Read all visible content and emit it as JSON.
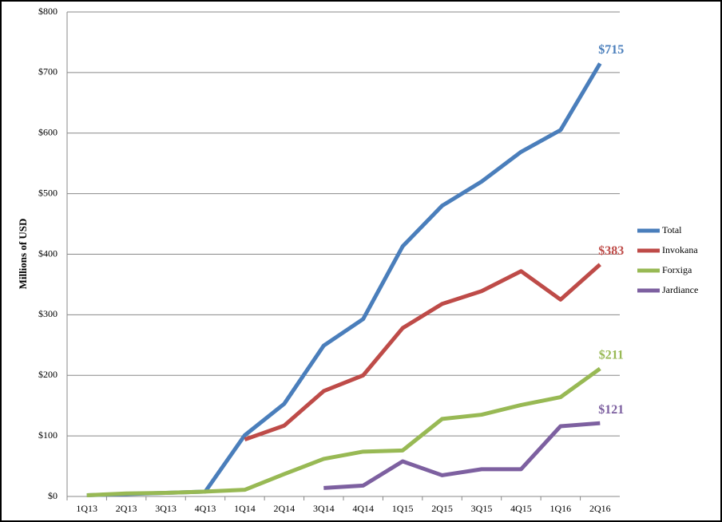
{
  "chart_data": {
    "type": "line",
    "y_label": "Millions of USD",
    "categories": [
      "1Q13",
      "2Q13",
      "3Q13",
      "4Q13",
      "1Q14",
      "2Q14",
      "3Q14",
      "4Q14",
      "1Q15",
      "2Q15",
      "3Q15",
      "4Q15",
      "1Q16",
      "2Q16"
    ],
    "series": [
      {
        "name": "Total",
        "color": "#4a7ebb",
        "values": [
          2,
          4,
          6,
          8,
          101,
          153,
          249,
          293,
          413,
          480,
          520,
          569,
          605,
          715
        ],
        "value_labels": [
          null,
          null,
          null,
          null,
          null,
          null,
          null,
          null,
          null,
          null,
          null,
          null,
          null,
          "$715"
        ]
      },
      {
        "name": "Invokana",
        "color": "#be4b48",
        "values": [
          null,
          null,
          null,
          null,
          94,
          117,
          174,
          200,
          278,
          318,
          339,
          372,
          325,
          383
        ],
        "value_labels": [
          null,
          null,
          null,
          null,
          null,
          null,
          null,
          null,
          null,
          null,
          null,
          null,
          null,
          "$383"
        ]
      },
      {
        "name": "Forxiga",
        "color": "#98b954",
        "values": [
          2,
          5,
          6,
          8,
          11,
          37,
          62,
          74,
          76,
          128,
          135,
          151,
          164,
          211
        ],
        "value_labels": [
          null,
          null,
          null,
          null,
          null,
          null,
          null,
          null,
          null,
          null,
          null,
          null,
          null,
          "$211"
        ]
      },
      {
        "name": "Jardiance",
        "color": "#7d60a0",
        "values": [
          null,
          null,
          null,
          null,
          null,
          null,
          14,
          18,
          58,
          35,
          45,
          45,
          116,
          121
        ],
        "value_labels": [
          null,
          null,
          null,
          null,
          null,
          null,
          null,
          null,
          null,
          null,
          null,
          null,
          null,
          "$121"
        ]
      }
    ],
    "ylim": [
      0,
      800
    ],
    "yticks": [
      {
        "value": 0,
        "label": "$0"
      },
      {
        "value": 100,
        "label": "$100"
      },
      {
        "value": 200,
        "label": "$200"
      },
      {
        "value": 300,
        "label": "$300"
      },
      {
        "value": 400,
        "label": "$400"
      },
      {
        "value": 500,
        "label": "$500"
      },
      {
        "value": 600,
        "label": "$600"
      },
      {
        "value": 700,
        "label": "$700"
      },
      {
        "value": 800,
        "label": "$800"
      }
    ],
    "grid": true,
    "legend": "right"
  }
}
